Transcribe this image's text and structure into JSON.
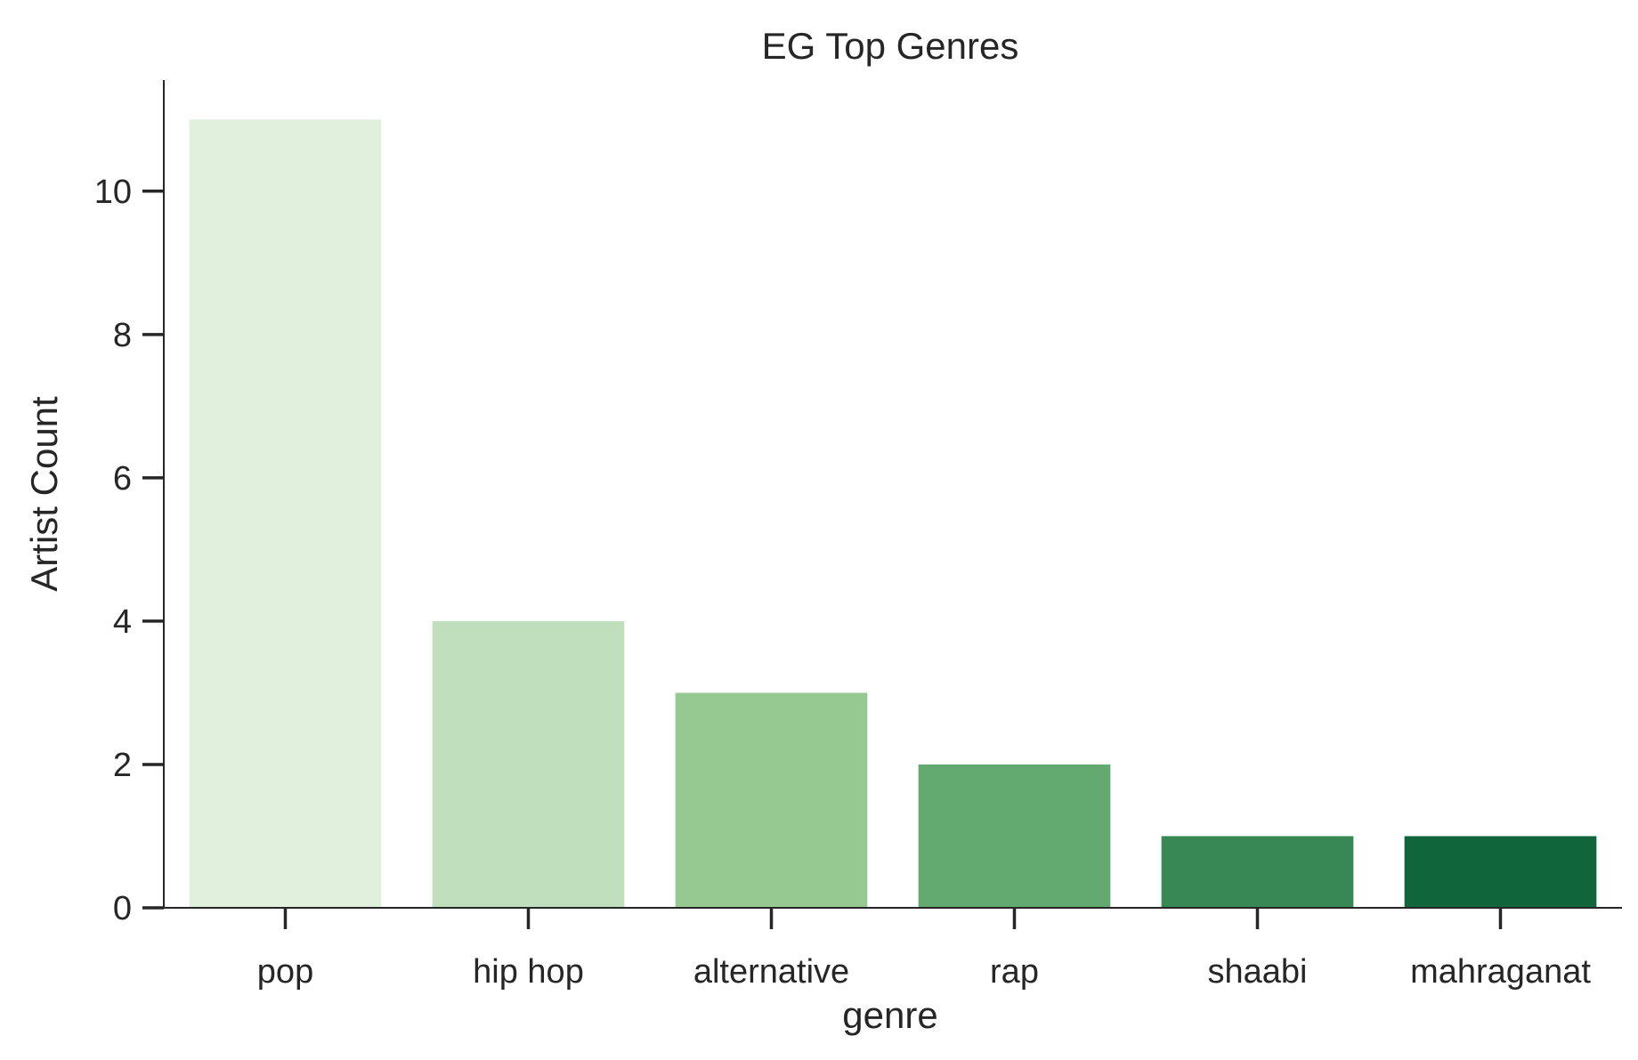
{
  "chart_data": {
    "type": "bar",
    "title": "EG Top Genres",
    "xlabel": "genre",
    "ylabel": "Artist Count",
    "categories": [
      "pop",
      "hip hop",
      "alternative",
      "rap",
      "shaabi",
      "mahraganat"
    ],
    "values": [
      11,
      4,
      3,
      2,
      1,
      1
    ],
    "colors": [
      "#e1f0dd",
      "#c0dfbc",
      "#96c891",
      "#62aa6f",
      "#378855",
      "#11653a"
    ],
    "ylim": [
      0,
      11.55
    ],
    "yticks": [
      0,
      2,
      4,
      6,
      8,
      10
    ],
    "grid": false,
    "legend": "none"
  }
}
